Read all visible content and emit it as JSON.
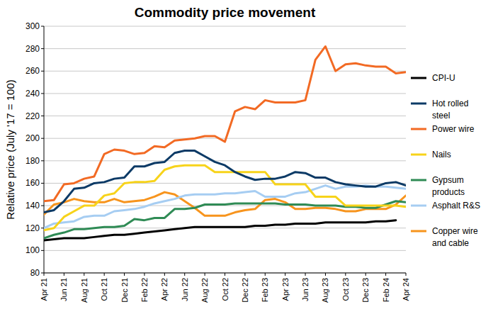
{
  "chart_data": {
    "type": "line",
    "title": "Commodity price movement",
    "y_label": "Relative price (July '17 = 100)",
    "categories": [
      "Apr 21",
      null,
      "Jun 21",
      null,
      "Aug 21",
      null,
      "Oct 21",
      null,
      "Dec 21",
      null,
      "Feb 22",
      null,
      "Apr 22",
      null,
      "Jun 22",
      null,
      "Aug 22",
      null,
      "Oct 22",
      null,
      "Dec 22",
      null,
      "Feb 23",
      null,
      "Apr 23",
      null,
      "Jun 23",
      null,
      "Aug 23",
      null,
      "Oct 23",
      null,
      "Dec 23",
      null,
      "Feb 24",
      null,
      "Apr 24"
    ],
    "ylim": [
      80,
      300
    ],
    "yticks": [
      80,
      100,
      120,
      140,
      160,
      180,
      200,
      220,
      240,
      260,
      280,
      300
    ],
    "grid": true,
    "legend": "right",
    "series": [
      {
        "name": "CPI-U",
        "color": "#000000",
        "values": [
          109,
          110,
          111,
          111,
          111,
          112,
          113,
          114,
          114,
          115,
          116,
          117,
          118,
          119,
          120,
          121,
          121,
          121,
          121,
          121,
          121,
          122,
          122,
          123,
          123,
          124,
          124,
          124,
          125,
          125,
          125,
          125,
          125,
          126,
          126,
          127,
          null
        ]
      },
      {
        "name": "Hot rolled steel",
        "color": "#0c3a66",
        "values": [
          134,
          136,
          144,
          155,
          156,
          160,
          161,
          164,
          165,
          175,
          175,
          178,
          179,
          187,
          189,
          189,
          184,
          179,
          176,
          170,
          166,
          163,
          164,
          164,
          166,
          170,
          169,
          165,
          165,
          161,
          159,
          158,
          157,
          157,
          160,
          161,
          158
        ]
      },
      {
        "name": "Power wire",
        "color": "#f26a24",
        "values": [
          144,
          145,
          159,
          160,
          164,
          166,
          186,
          190,
          189,
          186,
          187,
          193,
          192,
          198,
          199,
          200,
          202,
          202,
          197,
          224,
          228,
          226,
          234,
          232,
          232,
          232,
          234,
          270,
          282,
          260,
          266,
          267,
          265,
          264,
          264,
          258,
          259
        ]
      },
      {
        "name": "Nails",
        "color": "#f7d31a",
        "values": [
          118,
          120,
          130,
          135,
          140,
          140,
          149,
          151,
          160,
          161,
          161,
          162,
          172,
          175,
          176,
          176,
          176,
          170,
          170,
          170,
          170,
          170,
          170,
          159,
          159,
          159,
          159,
          148,
          148,
          148,
          140,
          140,
          140,
          140,
          140,
          140,
          139
        ]
      },
      {
        "name": "Gypsum products",
        "color": "#2f8b55",
        "values": [
          111,
          114,
          116,
          119,
          119,
          120,
          121,
          121,
          122,
          128,
          127,
          129,
          129,
          137,
          137,
          138,
          141,
          141,
          141,
          142,
          142,
          142,
          142,
          142,
          141,
          141,
          141,
          140,
          140,
          140,
          139,
          139,
          138,
          138,
          141,
          144,
          143
        ]
      },
      {
        "name": "Asphalt R&S",
        "color": "#a6cdf2",
        "values": [
          120,
          124,
          125,
          126,
          130,
          131,
          131,
          135,
          136,
          137,
          139,
          142,
          144,
          146,
          149,
          150,
          150,
          150,
          151,
          151,
          152,
          153,
          148,
          148,
          148,
          151,
          152,
          155,
          158,
          155,
          157,
          157,
          158,
          157,
          157,
          156,
          155
        ]
      },
      {
        "name": "Copper wire and cable",
        "color": "#f7941d",
        "values": [
          132,
          141,
          143,
          146,
          144,
          143,
          143,
          146,
          143,
          144,
          145,
          148,
          152,
          150,
          144,
          138,
          131,
          131,
          131,
          134,
          136,
          137,
          145,
          146,
          143,
          137,
          137,
          138,
          138,
          137,
          135,
          135,
          137,
          137,
          137,
          141,
          149
        ]
      }
    ]
  }
}
